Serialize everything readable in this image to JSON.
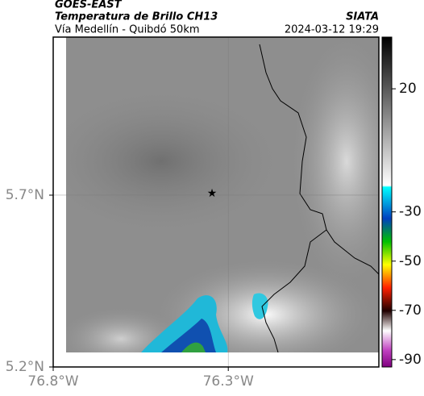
{
  "header": {
    "title": "GOES-EAST",
    "subtitle": "Temperatura de Brillo CH13",
    "location": "Vía Medellín - Quibdó 50km",
    "source": "SIATA",
    "datetime": "2024-03-12 19:29"
  },
  "map": {
    "xlim": [
      -76.8,
      -75.87
    ],
    "ylim": [
      5.2,
      6.16
    ],
    "xticks": [
      {
        "value": -76.8,
        "label": "76.8°W"
      },
      {
        "value": -76.3,
        "label": "76.3°W"
      }
    ],
    "yticks": [
      {
        "value": 5.7,
        "label": "5.7°N"
      },
      {
        "value": 5.2,
        "label": "5.2°N"
      }
    ],
    "grid": true
  },
  "colorbar": {
    "clim": [
      41,
      -93
    ],
    "ticks": [
      20,
      -30,
      -50,
      -70,
      -90
    ]
  }
}
